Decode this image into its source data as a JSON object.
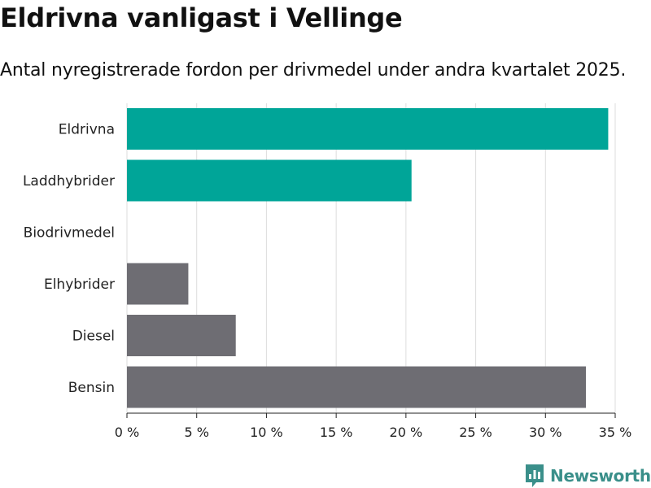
{
  "title": "Eldrivna vanligast i Vellinge",
  "subtitle": "Antal nyregistrerade fordon per drivmedel under andra kvartalet 2025.",
  "brand": {
    "name": "Newsworthy",
    "icon": "newsworthy-logo-icon",
    "color": "#3a8f8a"
  },
  "colors": {
    "highlight": "#00a598",
    "default": "#6e6d73",
    "grid": "#dddddd",
    "axis": "#222222"
  },
  "chart_data": {
    "type": "bar",
    "orientation": "horizontal",
    "categories": [
      "Eldrivna",
      "Laddhybrider",
      "Biodrivmedel",
      "Elhybrider",
      "Diesel",
      "Bensin"
    ],
    "values": [
      34.5,
      20.4,
      0,
      4.4,
      7.8,
      32.9
    ],
    "highlighted": [
      true,
      true,
      false,
      false,
      false,
      false
    ],
    "xlim": [
      0,
      35
    ],
    "xticks": [
      {
        "value": 0,
        "label": "0 %"
      },
      {
        "value": 5,
        "label": "5 %"
      },
      {
        "value": 10,
        "label": "10 %"
      },
      {
        "value": 15,
        "label": "15 %"
      },
      {
        "value": 20,
        "label": "20 %"
      },
      {
        "value": 25,
        "label": "25 %"
      },
      {
        "value": 30,
        "label": "30 %"
      },
      {
        "value": 35,
        "label": "35 %"
      }
    ],
    "grid": true,
    "legend": "none"
  }
}
